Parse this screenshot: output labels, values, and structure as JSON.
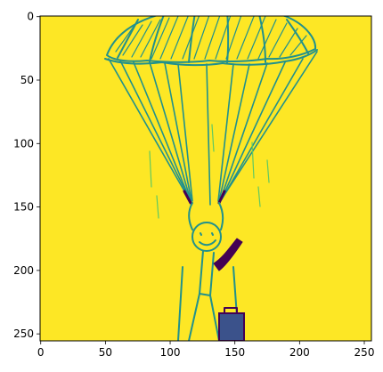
{
  "chart_data": {
    "type": "heatmap",
    "title": "",
    "xlabel": "",
    "ylabel": "",
    "xlim": [
      0,
      255
    ],
    "ylim": [
      255,
      0
    ],
    "x_ticks": [
      0,
      50,
      100,
      150,
      200,
      250
    ],
    "y_ticks": [
      0,
      50,
      100,
      150,
      200,
      250
    ],
    "x_tick_labels": [
      "0",
      "50",
      "100",
      "150",
      "200",
      "250"
    ],
    "y_tick_labels": [
      "0",
      "50",
      "100",
      "150",
      "200",
      "250"
    ],
    "image_size": [
      256,
      256
    ],
    "colormap": "viridis",
    "colors": {
      "background": "#fde725",
      "line": "#21918c",
      "line_light": "#5ec962",
      "dark": "#440154",
      "purple": "#3b528b"
    },
    "content_description_icon": "parachutist-sketch"
  }
}
